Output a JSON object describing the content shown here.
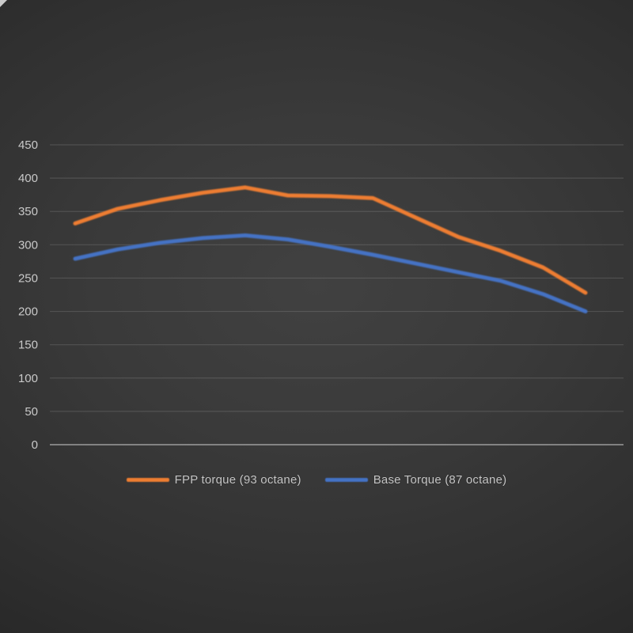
{
  "chart_data": {
    "type": "line",
    "title": "",
    "xlabel": "",
    "ylabel": "",
    "x": [
      1,
      2,
      3,
      4,
      5,
      6,
      7,
      8,
      9,
      10,
      11,
      12,
      13
    ],
    "x_axis_labels_visible": false,
    "series": [
      {
        "name": "FPP torque (93 octane)",
        "color": "#ED7D31",
        "values": [
          332,
          354,
          367,
          378,
          386,
          374,
          373,
          370,
          341,
          312,
          291,
          266,
          228
        ]
      },
      {
        "name": "Base Torque (87 octane)",
        "color": "#4472C4",
        "values": [
          279,
          293,
          303,
          310,
          314,
          308,
          297,
          285,
          272,
          259,
          246,
          226,
          200
        ]
      }
    ],
    "ylim": [
      0,
      450
    ],
    "yticks": [
      0,
      50,
      100,
      150,
      200,
      250,
      300,
      350,
      400,
      450
    ],
    "grid": true,
    "legend_position": "bottom"
  },
  "colors": {
    "background_center": "#414141",
    "background_edge": "#212121",
    "gridline": "rgba(255,255,255,0.13)",
    "zero_axis_line": "rgba(255,255,255,0.38)",
    "tick_text": "#c9c9c9",
    "legend_text": "#c6c6c6"
  }
}
